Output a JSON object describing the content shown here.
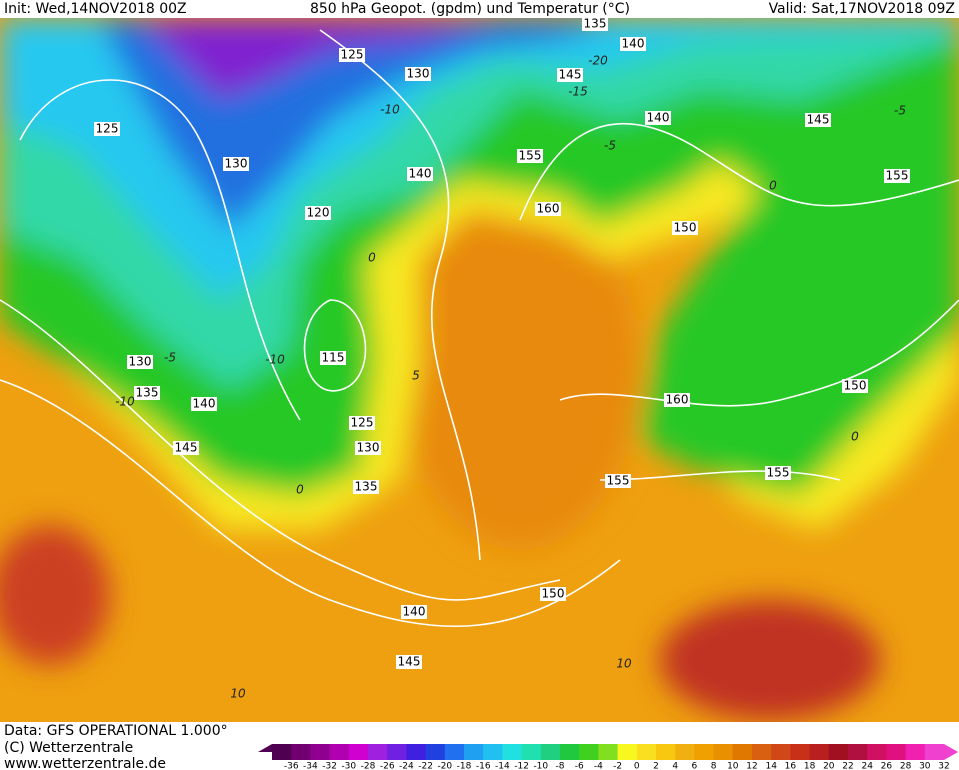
{
  "header": {
    "init": "Init: Wed,14NOV2018 00Z",
    "title": "850 hPa Geopot. (gpdm) und Temperatur (°C)",
    "valid": "Valid: Sat,17NOV2018 09Z"
  },
  "contour_labels": [
    "135",
    "140",
    "125",
    "130",
    "145",
    "125",
    "140",
    "145",
    "130",
    "155",
    "140",
    "155",
    "120",
    "160",
    "150",
    "115",
    "130",
    "135",
    "140",
    "125",
    "160",
    "150",
    "145",
    "130",
    "135",
    "155",
    "155",
    "140",
    "150",
    "145"
  ],
  "isotherm_labels": [
    "-20",
    "-15",
    "-10",
    "-5",
    "-10",
    "-5",
    "-10",
    "0",
    "0",
    "0",
    "5",
    "10",
    "10",
    "0",
    "-5"
  ],
  "colorbar": {
    "labels": [
      -36,
      -34,
      -32,
      -30,
      -28,
      -26,
      -24,
      -22,
      -20,
      -18,
      -16,
      -14,
      -12,
      -10,
      -8,
      -6,
      -4,
      -2,
      0,
      2,
      4,
      6,
      8,
      10,
      12,
      14,
      16,
      18,
      20,
      22,
      24,
      26,
      28,
      30,
      32
    ]
  },
  "footer": {
    "data": "Data: GFS OPERATIONAL 1.000°",
    "copyright": "(C) Wetterzentrale",
    "url": "www.wetterzentrale.de"
  }
}
